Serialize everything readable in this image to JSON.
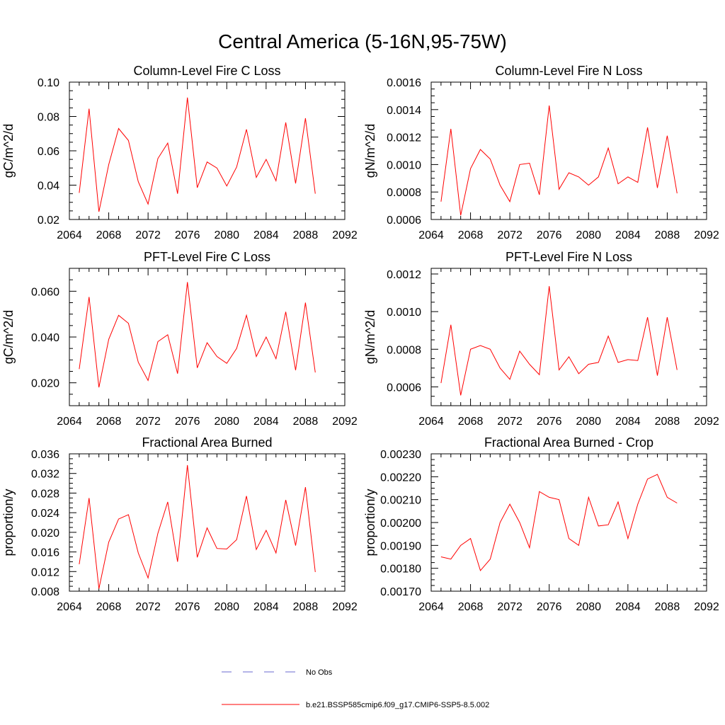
{
  "figure_title": "Central America (5-16N,95-75W)",
  "colors": {
    "series": "#ff0000",
    "obs": "#6a6ad0",
    "axis": "#000000"
  },
  "legend": {
    "placement": "bottom-center",
    "items": [
      {
        "label": "No Obs",
        "style": "dashed",
        "color": "#6a6ad0"
      },
      {
        "label": "b.e21.BSSP585cmip6.f09_g17.CMIP6-SSP5-8.5.002",
        "style": "solid",
        "color": "#ff0000"
      }
    ]
  },
  "chart_data": [
    {
      "type": "line",
      "title": "Column-Level Fire C Loss",
      "ylabel": "gC/m^2/d",
      "xlim": [
        2064,
        2092
      ],
      "xticks": [
        "2064",
        "2068",
        "2072",
        "2076",
        "2080",
        "2084",
        "2088",
        "2092"
      ],
      "ylim": [
        0.02,
        0.1
      ],
      "yticks": [
        "0.02",
        "0.04",
        "0.06",
        "0.08",
        "0.10"
      ],
      "x": [
        2065,
        2066,
        2067,
        2068,
        2069,
        2070,
        2071,
        2072,
        2073,
        2074,
        2075,
        2076,
        2077,
        2078,
        2079,
        2080,
        2081,
        2082,
        2083,
        2084,
        2085,
        2086,
        2087,
        2088,
        2089
      ],
      "series": [
        {
          "name": "b.e21.BSSP585cmip6.f09_g17.CMIP6-SSP5-8.5.002",
          "values": [
            0.0355,
            0.0845,
            0.0245,
            0.052,
            0.073,
            0.066,
            0.042,
            0.029,
            0.0555,
            0.0645,
            0.035,
            0.091,
            0.0385,
            0.0535,
            0.05,
            0.0395,
            0.0505,
            0.0725,
            0.0445,
            0.055,
            0.0425,
            0.0765,
            0.041,
            0.079,
            0.035
          ]
        }
      ]
    },
    {
      "type": "line",
      "title": "Column-Level Fire N Loss",
      "ylabel": "gN/m^2/d",
      "xlim": [
        2064,
        2092
      ],
      "xticks": [
        "2064",
        "2068",
        "2072",
        "2076",
        "2080",
        "2084",
        "2088",
        "2092"
      ],
      "ylim": [
        0.0006,
        0.0016
      ],
      "yticks": [
        "0.0006",
        "0.0008",
        "0.0010",
        "0.0012",
        "0.0014",
        "0.0016"
      ],
      "x": [
        2065,
        2066,
        2067,
        2068,
        2069,
        2070,
        2071,
        2072,
        2073,
        2074,
        2075,
        2076,
        2077,
        2078,
        2079,
        2080,
        2081,
        2082,
        2083,
        2084,
        2085,
        2086,
        2087,
        2088,
        2089
      ],
      "series": [
        {
          "name": "b.e21.BSSP585cmip6.f09_g17.CMIP6-SSP5-8.5.002",
          "values": [
            0.00073,
            0.00126,
            0.00063,
            0.00097,
            0.00111,
            0.00104,
            0.00085,
            0.00073,
            0.001,
            0.00101,
            0.00078,
            0.00143,
            0.00082,
            0.00094,
            0.00091,
            0.00085,
            0.00091,
            0.00112,
            0.00086,
            0.00091,
            0.00087,
            0.00127,
            0.00083,
            0.00121,
            0.00079
          ]
        }
      ]
    },
    {
      "type": "line",
      "title": "PFT-Level Fire C Loss",
      "ylabel": "gC/m^2/d",
      "xlim": [
        2064,
        2092
      ],
      "xticks": [
        "2064",
        "2068",
        "2072",
        "2076",
        "2080",
        "2084",
        "2088",
        "2092"
      ],
      "ylim": [
        0.01,
        0.07
      ],
      "yticks": [
        "0.020",
        "0.040",
        "0.060"
      ],
      "ytick_values": [
        0.02,
        0.04,
        0.06
      ],
      "x": [
        2065,
        2066,
        2067,
        2068,
        2069,
        2070,
        2071,
        2072,
        2073,
        2074,
        2075,
        2076,
        2077,
        2078,
        2079,
        2080,
        2081,
        2082,
        2083,
        2084,
        2085,
        2086,
        2087,
        2088,
        2089
      ],
      "series": [
        {
          "name": "b.e21.BSSP585cmip6.f09_g17.CMIP6-SSP5-8.5.002",
          "values": [
            0.026,
            0.0575,
            0.018,
            0.039,
            0.0495,
            0.046,
            0.029,
            0.021,
            0.038,
            0.041,
            0.024,
            0.064,
            0.0265,
            0.0375,
            0.0315,
            0.0285,
            0.035,
            0.0495,
            0.0315,
            0.04,
            0.0305,
            0.051,
            0.0255,
            0.055,
            0.0245
          ]
        }
      ]
    },
    {
      "type": "line",
      "title": "PFT-Level Fire N Loss",
      "ylabel": "gN/m^2/d",
      "xlim": [
        2064,
        2092
      ],
      "xticks": [
        "2064",
        "2068",
        "2072",
        "2076",
        "2080",
        "2084",
        "2088",
        "2092"
      ],
      "ylim": [
        0.0005,
        0.00123
      ],
      "yticks": [
        "0.0006",
        "0.0008",
        "0.0010",
        "0.0012"
      ],
      "ytick_values": [
        0.0006,
        0.0008,
        0.001,
        0.0012
      ],
      "x": [
        2065,
        2066,
        2067,
        2068,
        2069,
        2070,
        2071,
        2072,
        2073,
        2074,
        2075,
        2076,
        2077,
        2078,
        2079,
        2080,
        2081,
        2082,
        2083,
        2084,
        2085,
        2086,
        2087,
        2088,
        2089
      ],
      "series": [
        {
          "name": "b.e21.BSSP585cmip6.f09_g17.CMIP6-SSP5-8.5.002",
          "values": [
            0.00062,
            0.00093,
            0.000555,
            0.0008,
            0.00082,
            0.0008,
            0.0007,
            0.00064,
            0.00079,
            0.00072,
            0.000665,
            0.001135,
            0.00069,
            0.00076,
            0.00067,
            0.00072,
            0.00073,
            0.00087,
            0.00073,
            0.000745,
            0.00074,
            0.00097,
            0.00066,
            0.00097,
            0.00069
          ]
        }
      ]
    },
    {
      "type": "line",
      "title": "Fractional Area Burned",
      "ylabel": "proportion/y",
      "xlim": [
        2064,
        2092
      ],
      "xticks": [
        "2064",
        "2068",
        "2072",
        "2076",
        "2080",
        "2084",
        "2088",
        "2092"
      ],
      "ylim": [
        0.008,
        0.036
      ],
      "yticks": [
        "0.008",
        "0.012",
        "0.016",
        "0.020",
        "0.024",
        "0.028",
        "0.032",
        "0.036"
      ],
      "x": [
        2065,
        2066,
        2067,
        2068,
        2069,
        2070,
        2071,
        2072,
        2073,
        2074,
        2075,
        2076,
        2077,
        2078,
        2079,
        2080,
        2081,
        2082,
        2083,
        2084,
        2085,
        2086,
        2087,
        2088,
        2089
      ],
      "series": [
        {
          "name": "b.e21.BSSP585cmip6.f09_g17.CMIP6-SSP5-8.5.002",
          "values": [
            0.0135,
            0.027,
            0.0085,
            0.018,
            0.0227,
            0.0236,
            0.0158,
            0.0107,
            0.0198,
            0.0262,
            0.014,
            0.0337,
            0.0149,
            0.0209,
            0.0167,
            0.0166,
            0.0185,
            0.0274,
            0.0165,
            0.0204,
            0.0158,
            0.0266,
            0.0173,
            0.0292,
            0.0119
          ]
        }
      ]
    },
    {
      "type": "line",
      "title": "Fractional Area Burned - Crop",
      "ylabel": "proportion/y",
      "xlim": [
        2064,
        2092
      ],
      "xticks": [
        "2064",
        "2068",
        "2072",
        "2076",
        "2080",
        "2084",
        "2088",
        "2092"
      ],
      "ylim": [
        0.0017,
        0.0023
      ],
      "yticks": [
        "0.00170",
        "0.00180",
        "0.00190",
        "0.00200",
        "0.00210",
        "0.00220",
        "0.00230"
      ],
      "x": [
        2065,
        2066,
        2067,
        2068,
        2069,
        2070,
        2071,
        2072,
        2073,
        2074,
        2075,
        2076,
        2077,
        2078,
        2079,
        2080,
        2081,
        2082,
        2083,
        2084,
        2085,
        2086,
        2087,
        2088,
        2089
      ],
      "series": [
        {
          "name": "b.e21.BSSP585cmip6.f09_g17.CMIP6-SSP5-8.5.002",
          "values": [
            0.00185,
            0.00184,
            0.0019,
            0.00193,
            0.00179,
            0.00184,
            0.002,
            0.00208,
            0.002,
            0.00189,
            0.002135,
            0.00211,
            0.0021,
            0.00193,
            0.0019,
            0.00211,
            0.001985,
            0.00199,
            0.00209,
            0.00193,
            0.00208,
            0.00219,
            0.00221,
            0.00211,
            0.002085
          ]
        }
      ]
    }
  ]
}
